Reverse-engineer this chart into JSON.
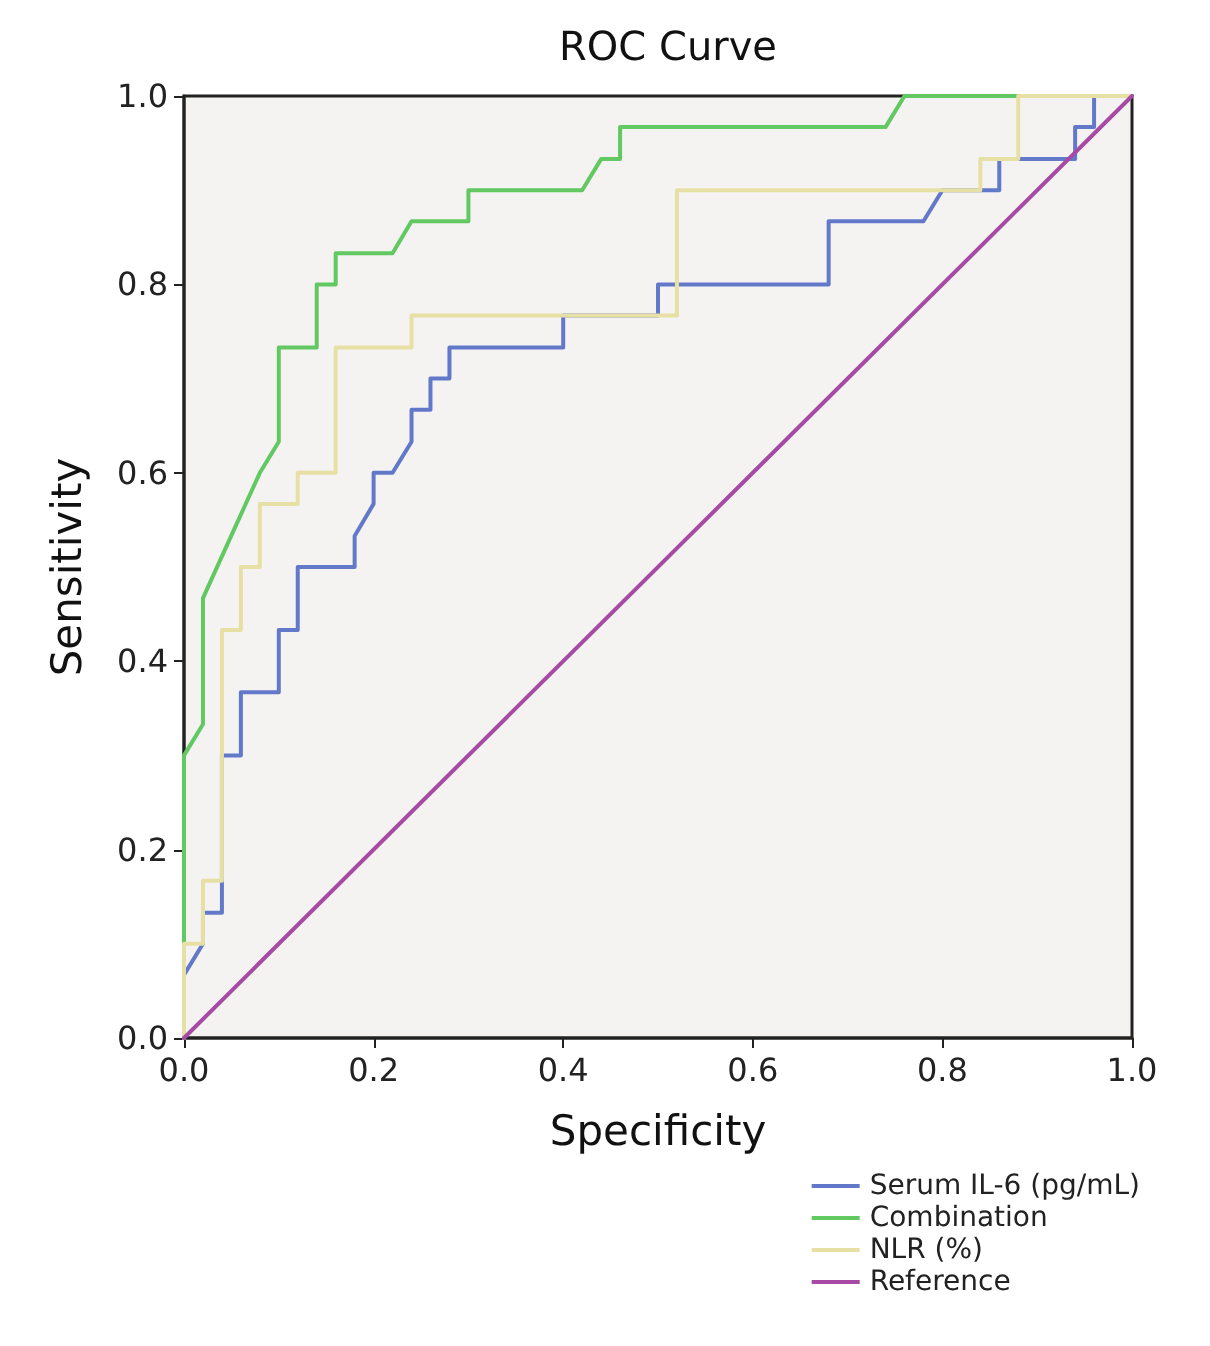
{
  "chart_data": {
    "type": "line",
    "title": "ROC Curve",
    "xlabel": "Specificity",
    "ylabel": "Sensitivity",
    "xlim": [
      0,
      1
    ],
    "ylim": [
      0,
      1
    ],
    "xticks": [
      {
        "value": 0,
        "label": "0.0"
      },
      {
        "value": 0.2,
        "label": "0.2"
      },
      {
        "value": 0.4,
        "label": "0.4"
      },
      {
        "value": 0.6,
        "label": "0.6"
      },
      {
        "value": 0.8,
        "label": "0.8"
      },
      {
        "value": 1,
        "label": "1.0"
      }
    ],
    "yticks": [
      {
        "value": 0,
        "label": "0.0"
      },
      {
        "value": 0.2,
        "label": "0.2"
      },
      {
        "value": 0.4,
        "label": "0.4"
      },
      {
        "value": 0.6,
        "label": "0.6"
      },
      {
        "value": 0.8,
        "label": "0.8"
      },
      {
        "value": 1,
        "label": "1.0"
      }
    ],
    "grid": false,
    "legend": "bottom right",
    "marker": "none",
    "line_style": "solid",
    "series": [
      {
        "name": "Serum IL-6 (pg/mL)",
        "color": "#6279c9",
        "x": [
          0,
          0,
          0.02,
          0.02,
          0.04,
          0.04,
          0.06,
          0.06,
          0.1,
          0.1,
          0.12,
          0.12,
          0.18,
          0.18,
          0.2,
          0.2,
          0.22,
          0.24,
          0.24,
          0.26,
          0.26,
          0.28,
          0.28,
          0.4,
          0.4,
          0.5,
          0.5,
          0.68,
          0.68,
          0.78,
          0.8,
          0.86,
          0.86,
          0.94,
          0.94,
          0.96,
          0.96,
          1
        ],
        "values": [
          0,
          0.067,
          0.1,
          0.133,
          0.133,
          0.3,
          0.3,
          0.367,
          0.367,
          0.433,
          0.433,
          0.5,
          0.5,
          0.533,
          0.567,
          0.6,
          0.6,
          0.633,
          0.667,
          0.667,
          0.7,
          0.7,
          0.733,
          0.733,
          0.767,
          0.767,
          0.8,
          0.8,
          0.867,
          0.867,
          0.9,
          0.9,
          0.933,
          0.933,
          0.967,
          0.967,
          1,
          1
        ]
      },
      {
        "name": "Combination",
        "color": "#62c862",
        "x": [
          0,
          0,
          0.02,
          0.02,
          0.08,
          0.1,
          0.1,
          0.14,
          0.14,
          0.16,
          0.16,
          0.22,
          0.24,
          0.3,
          0.3,
          0.42,
          0.44,
          0.46,
          0.46,
          0.74,
          0.76,
          1
        ],
        "values": [
          0,
          0.3,
          0.333,
          0.467,
          0.6,
          0.633,
          0.733,
          0.733,
          0.8,
          0.8,
          0.833,
          0.833,
          0.867,
          0.867,
          0.9,
          0.9,
          0.933,
          0.933,
          0.967,
          0.967,
          1,
          1
        ]
      },
      {
        "name": "NLR (%)",
        "color": "#e6e0a4",
        "x": [
          0,
          0,
          0.02,
          0.02,
          0.04,
          0.04,
          0.06,
          0.06,
          0.08,
          0.08,
          0.12,
          0.12,
          0.16,
          0.16,
          0.24,
          0.24,
          0.52,
          0.52,
          0.84,
          0.84,
          0.88,
          0.88,
          1
        ],
        "values": [
          0,
          0.1,
          0.1,
          0.167,
          0.167,
          0.433,
          0.433,
          0.5,
          0.5,
          0.567,
          0.567,
          0.6,
          0.6,
          0.733,
          0.733,
          0.767,
          0.767,
          0.9,
          0.9,
          0.933,
          0.933,
          1,
          1
        ]
      },
      {
        "name": "Reference",
        "color": "#a64aa4",
        "x": [
          0,
          1
        ],
        "values": [
          0,
          1
        ]
      }
    ]
  }
}
